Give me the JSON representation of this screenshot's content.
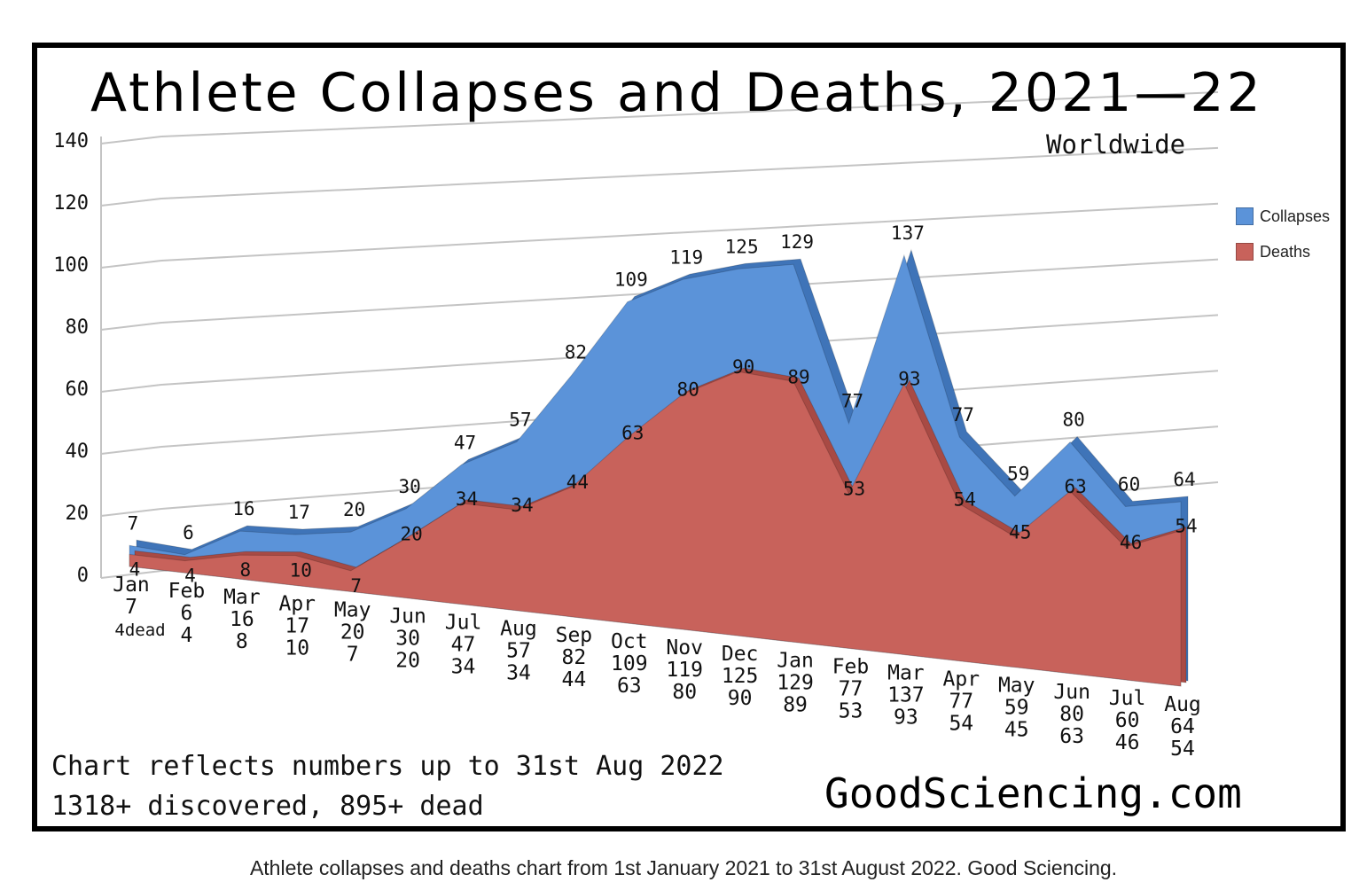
{
  "title": "Athlete Collapses and Deaths, 2021—22",
  "subtitle": "Worldwide",
  "footnote_line1": "Chart reflects numbers up to 31st Aug 2022",
  "footnote_line2": "1318+ discovered, 895+ dead",
  "website": "GoodSciencing.com",
  "caption": "Athlete collapses and deaths chart from 1st January 2021 to 31st August 2022. Good Sciencing.",
  "colors": {
    "collapses": "#5b93d9",
    "deaths": "#c8625b",
    "frame": "#000000"
  },
  "chart_data": {
    "type": "area",
    "title": "Athlete Collapses and Deaths, 2021—22",
    "subtitle": "Worldwide",
    "categories": [
      "Jan",
      "Feb",
      "Mar",
      "Apr",
      "May",
      "Jun",
      "Jul",
      "Aug",
      "Sep",
      "Oct",
      "Nov",
      "Dec",
      "Jan",
      "Feb",
      "Mar",
      "Apr",
      "May",
      "Jun",
      "Jul",
      "Aug"
    ],
    "series": [
      {
        "name": "Collapses",
        "values": [
          7,
          6,
          16,
          17,
          20,
          30,
          47,
          57,
          82,
          109,
          119,
          125,
          129,
          77,
          137,
          77,
          59,
          80,
          60,
          64
        ]
      },
      {
        "name": "Deaths",
        "values": [
          4,
          4,
          8,
          10,
          7,
          20,
          34,
          34,
          44,
          63,
          80,
          90,
          89,
          53,
          93,
          54,
          45,
          63,
          46,
          54
        ]
      }
    ],
    "ylim": [
      0,
      140
    ],
    "yticks": [
      0,
      20,
      40,
      60,
      80,
      100,
      120,
      140
    ],
    "legend": "right",
    "grid": true,
    "first_category_suffix": "dead"
  }
}
